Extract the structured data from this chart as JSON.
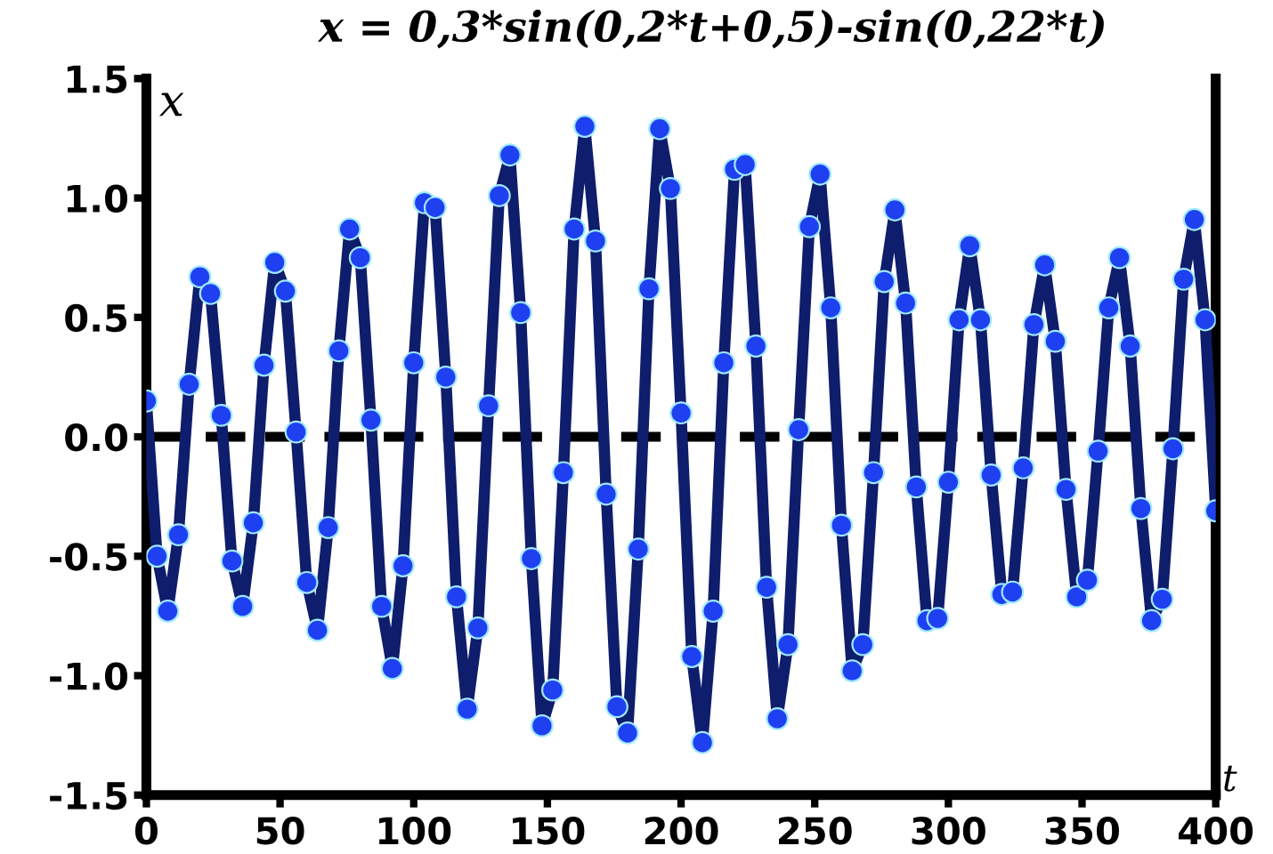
{
  "chart_data": {
    "type": "line",
    "title": "x = 0,3*sin(0,2*t+0,5)-sin(0,22*t)",
    "xlabel": "t",
    "ylabel": "x",
    "x": [
      0,
      4,
      8,
      12,
      16,
      20,
      24,
      28,
      32,
      36,
      40,
      44,
      48,
      52,
      56,
      60,
      64,
      68,
      72,
      76,
      80,
      84,
      88,
      92,
      96,
      100,
      104,
      108,
      112,
      116,
      120,
      124,
      128,
      132,
      136,
      140,
      144,
      148,
      152,
      156,
      160,
      164,
      168,
      172,
      176,
      180,
      184,
      188,
      192,
      196,
      200,
      204,
      208,
      212,
      216,
      220,
      224,
      228,
      232,
      236,
      240,
      244,
      248,
      252,
      256,
      260,
      264,
      268,
      272,
      276,
      280,
      284,
      288,
      292,
      296,
      300,
      304,
      308,
      312,
      316,
      320,
      324,
      328,
      332,
      336,
      340,
      344,
      348,
      352,
      356,
      360,
      364,
      368,
      372,
      376,
      380,
      384,
      388,
      392,
      396,
      400
    ],
    "series": [
      {
        "color": "#1f40f0",
        "values": [
          0.15,
          -0.5,
          -0.73,
          -0.41,
          0.22,
          0.67,
          0.6,
          0.09,
          -0.52,
          -0.71,
          -0.36,
          0.3,
          0.73,
          0.61,
          0.02,
          -0.61,
          -0.81,
          -0.38,
          0.36,
          0.87,
          0.75,
          0.07,
          -0.71,
          -0.97,
          -0.54,
          0.31,
          0.98,
          0.96,
          0.25,
          -0.67,
          -1.14,
          -0.8,
          0.13,
          1.01,
          1.18,
          0.52,
          -0.51,
          -1.21,
          -1.06,
          -0.15,
          0.87,
          1.3,
          0.82,
          -0.24,
          -1.13,
          -1.24,
          -0.47,
          0.62,
          1.29,
          1.04,
          0.1,
          -0.92,
          -1.28,
          -0.73,
          0.31,
          1.12,
          1.14,
          0.38,
          -0.63,
          -1.18,
          -0.87,
          0.03,
          0.88,
          1.1,
          0.54,
          -0.37,
          -0.98,
          -0.87,
          -0.15,
          0.65,
          0.95,
          0.56,
          -0.21,
          -0.77,
          -0.76,
          -0.19,
          0.49,
          0.8,
          0.49,
          -0.16,
          -0.66,
          -0.65,
          -0.13,
          0.47,
          0.72,
          0.4,
          -0.22,
          -0.67,
          -0.6,
          -0.06,
          0.54,
          0.75,
          0.38,
          -0.3,
          -0.77,
          -0.68,
          -0.05,
          0.66,
          0.91,
          0.49,
          -0.31
        ]
      }
    ],
    "xlim": [
      0,
      400
    ],
    "ylim": [
      -1.5,
      1.5
    ],
    "xticks": [
      0,
      50,
      100,
      150,
      200,
      250,
      300,
      350,
      400
    ],
    "yticks": [
      1.5,
      {
        "value": 1,
        "label": "1.0"
      },
      0.5,
      {
        "value": 0,
        "label": "0.0"
      },
      {
        "value": -0.5,
        "label": "-0.5"
      },
      {
        "value": -1,
        "label": "-1.0"
      },
      {
        "value": -1.5,
        "label": "-1.5"
      }
    ],
    "ref_lines": [
      {
        "axis": "y",
        "value": 0,
        "color": "#000000",
        "line_style": "dashed"
      }
    ],
    "marker": "circle",
    "line_style": "solid",
    "grid": false
  }
}
